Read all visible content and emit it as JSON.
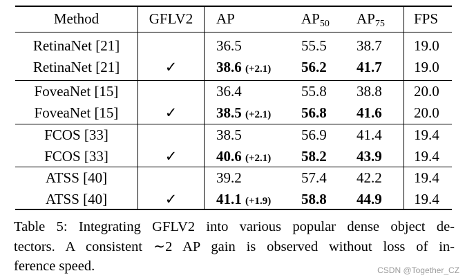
{
  "table": {
    "headers": {
      "method": "Method",
      "gflv2": "GFLV2",
      "ap": "AP",
      "ap50_base": "AP",
      "ap50_sub": "50",
      "ap75_base": "AP",
      "ap75_sub": "75",
      "fps": "FPS"
    },
    "rows": [
      {
        "method": "RetinaNet [21]",
        "gflv2": "",
        "ap": "36.5",
        "gain": "",
        "ap50": "55.5",
        "ap75": "38.7",
        "fps": "19.0"
      },
      {
        "method": "RetinaNet [21]",
        "gflv2": "✓",
        "ap": "38.6",
        "gain": "(+2.1)",
        "ap50": "56.2",
        "ap75": "41.7",
        "fps": "19.0"
      },
      {
        "method": "FoveaNet [15]",
        "gflv2": "",
        "ap": "36.4",
        "gain": "",
        "ap50": "55.8",
        "ap75": "38.8",
        "fps": "20.0"
      },
      {
        "method": "FoveaNet [15]",
        "gflv2": "✓",
        "ap": "38.5",
        "gain": "(+2.1)",
        "ap50": "56.8",
        "ap75": "41.6",
        "fps": "20.0"
      },
      {
        "method": "FCOS [33]",
        "gflv2": "",
        "ap": "38.5",
        "gain": "",
        "ap50": "56.9",
        "ap75": "41.4",
        "fps": "19.4"
      },
      {
        "method": "FCOS [33]",
        "gflv2": "✓",
        "ap": "40.6",
        "gain": "(+2.1)",
        "ap50": "58.2",
        "ap75": "43.9",
        "fps": "19.4"
      },
      {
        "method": "ATSS [40]",
        "gflv2": "",
        "ap": "39.2",
        "gain": "",
        "ap50": "57.4",
        "ap75": "42.2",
        "fps": "19.4"
      },
      {
        "method": "ATSS [40]",
        "gflv2": "✓",
        "ap": "41.1",
        "gain": "(+1.9)",
        "ap50": "58.8",
        "ap75": "44.9",
        "fps": "19.4"
      }
    ]
  },
  "caption": {
    "line1": "Table 5: Integrating GFLV2 into various popular dense object de-",
    "line2": "tectors. A consistent ∼2 AP gain is observed without loss of in-",
    "line3": "ference speed."
  },
  "watermark": "CSDN @Together_CZ"
}
